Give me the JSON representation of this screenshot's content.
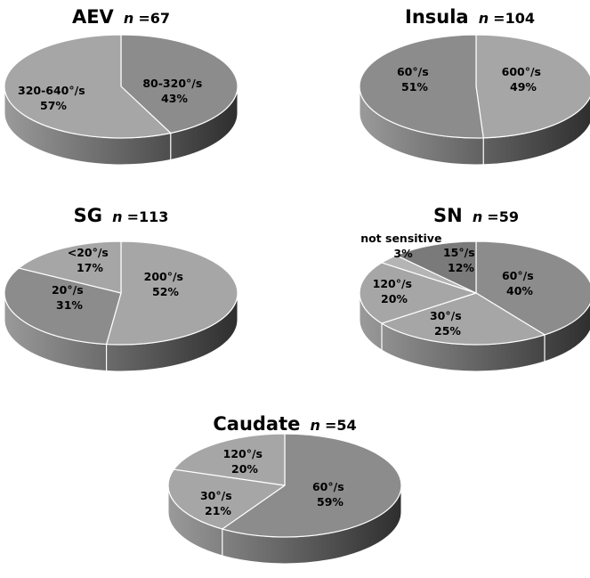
{
  "chart_data": [
    {
      "type": "pie",
      "title": "AEV",
      "n_label": "n",
      "n_value": "=67",
      "slices": [
        {
          "label": "80-320°/s",
          "value": 43,
          "value_label": "43%",
          "color": "#8c8c8c"
        },
        {
          "label": "320-640°/s",
          "value": 57,
          "value_label": "57%",
          "color": "#a6a6a6"
        }
      ]
    },
    {
      "type": "pie",
      "title": "Insula",
      "n_label": "n",
      "n_value": "=104",
      "slices": [
        {
          "label": "600°/s",
          "value": 49,
          "value_label": "49%",
          "color": "#a6a6a6"
        },
        {
          "label": "60°/s",
          "value": 51,
          "value_label": "51%",
          "color": "#8c8c8c"
        }
      ]
    },
    {
      "type": "pie",
      "title": "SG",
      "n_label": "n",
      "n_value": "=113",
      "slices": [
        {
          "label": "200°/s",
          "value": 52,
          "value_label": "52%",
          "color": "#a6a6a6"
        },
        {
          "label": "20°/s",
          "value": 31,
          "value_label": "31%",
          "color": "#8c8c8c"
        },
        {
          "label": "<20°/s",
          "value": 17,
          "value_label": "17%",
          "color": "#a6a6a6"
        }
      ]
    },
    {
      "type": "pie",
      "title": "SN",
      "n_label": "n",
      "n_value": "=59",
      "slices": [
        {
          "label": "60°/s",
          "value": 40,
          "value_label": "40%",
          "color": "#8c8c8c"
        },
        {
          "label": "30°/s",
          "value": 25,
          "value_label": "25%",
          "color": "#a6a6a6"
        },
        {
          "label": "120°/s",
          "value": 20,
          "value_label": "20%",
          "color": "#a6a6a6"
        },
        {
          "label": "not sensitive",
          "value": 3,
          "value_label": "3%",
          "color": "#b4b4b4"
        },
        {
          "label": "15°/s",
          "value": 12,
          "value_label": "12%",
          "color": "#7a7a7a"
        }
      ]
    },
    {
      "type": "pie",
      "title": "Caudate",
      "n_label": "n",
      "n_value": "=54",
      "slices": [
        {
          "label": "60°/s",
          "value": 59,
          "value_label": "59%",
          "color": "#8c8c8c"
        },
        {
          "label": "30°/s",
          "value": 21,
          "value_label": "21%",
          "color": "#a6a6a6"
        },
        {
          "label": "120°/s",
          "value": 20,
          "value_label": "20%",
          "color": "#a6a6a6"
        }
      ]
    }
  ]
}
